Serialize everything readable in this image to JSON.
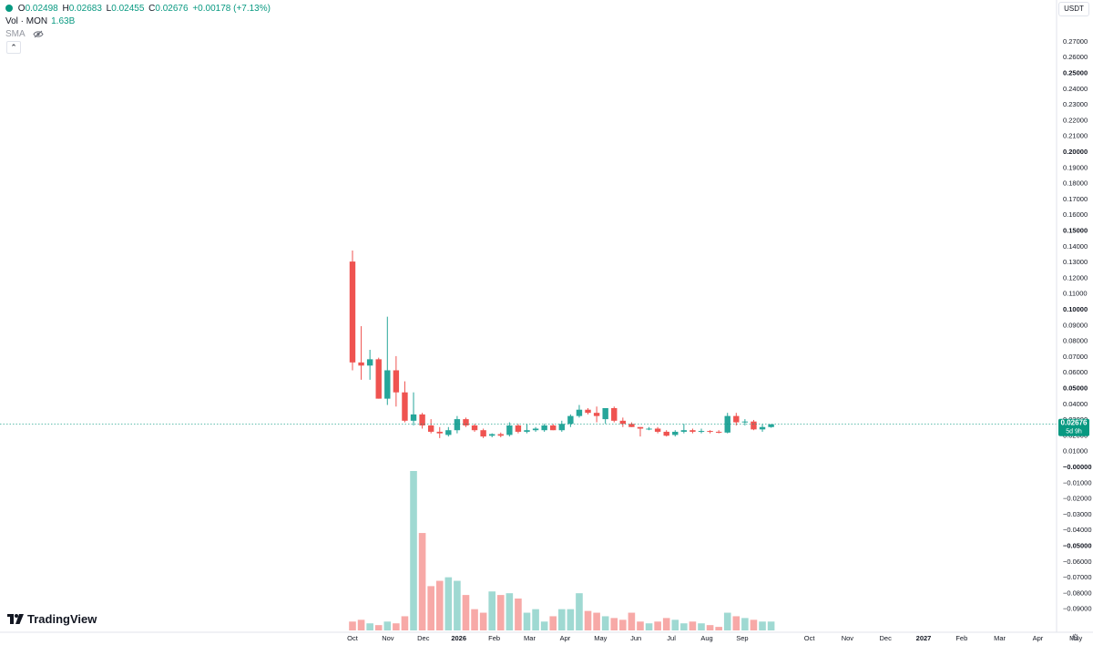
{
  "legend": {
    "o_key": "O",
    "o_val": "0.02498",
    "h_key": "H",
    "h_val": "0.02683",
    "l_key": "L",
    "l_val": "0.02455",
    "c_key": "C",
    "c_val": "0.02676",
    "change": "+0.00178 (+7.13%)",
    "vol_label": "Vol · MON",
    "vol_val": "1.63B",
    "sma_label": "SMA"
  },
  "currency": "USDT",
  "logo_text": "TradingView",
  "colors": {
    "up": "#26a69a",
    "down": "#ef5350",
    "up_vol": "#9fd9d2",
    "down_vol": "#f7a9a7",
    "price_tag": "#089981"
  },
  "chart_data": {
    "type": "candlestick",
    "interval": "weekly",
    "price_axis": {
      "ylim": [
        -0.1,
        0.28
      ],
      "tick_labels": [
        "0.27000",
        "0.26000",
        "0.25000",
        "0.24000",
        "0.23000",
        "0.22000",
        "0.21000",
        "0.20000",
        "0.19000",
        "0.18000",
        "0.17000",
        "0.16000",
        "0.15000",
        "0.14000",
        "0.13000",
        "0.12000",
        "0.11000",
        "0.10000",
        "0.09000",
        "0.08000",
        "0.07000",
        "0.06000",
        "0.05000",
        "0.04000",
        "0.03000",
        "0.02000",
        "0.01000",
        "−0.00000",
        "−0.01000",
        "−0.02000",
        "−0.03000",
        "−0.04000",
        "−0.05000",
        "−0.06000",
        "−0.07000",
        "−0.08000",
        "−0.09000"
      ],
      "bold_labels": [
        "0.25000",
        "0.20000",
        "0.15000",
        "0.10000",
        "0.05000",
        "−0.00000",
        "−0.05000"
      ]
    },
    "x_axis": {
      "labels": [
        "Oct",
        "Nov",
        "Dec",
        "2026",
        "Feb",
        "Mar",
        "Apr",
        "May",
        "Jun",
        "Jul",
        "Aug",
        "Sep",
        "Oct",
        "Nov",
        "Dec",
        "2027",
        "Feb",
        "Mar",
        "Apr",
        "May"
      ],
      "bold_labels": [
        "2026",
        "2027"
      ]
    },
    "last_price": {
      "value": 0.02676,
      "label": "0.02676",
      "countdown": "5d 9h"
    },
    "candles": [
      {
        "o": 0.13,
        "h": 0.137,
        "l": 0.061,
        "c": 0.066
      },
      {
        "o": 0.066,
        "h": 0.089,
        "l": 0.055,
        "c": 0.064
      },
      {
        "o": 0.064,
        "h": 0.074,
        "l": 0.055,
        "c": 0.068
      },
      {
        "o": 0.068,
        "h": 0.069,
        "l": 0.043,
        "c": 0.043
      },
      {
        "o": 0.043,
        "h": 0.095,
        "l": 0.039,
        "c": 0.061
      },
      {
        "o": 0.061,
        "h": 0.07,
        "l": 0.038,
        "c": 0.047
      },
      {
        "o": 0.047,
        "h": 0.054,
        "l": 0.028,
        "c": 0.029
      },
      {
        "o": 0.029,
        "h": 0.047,
        "l": 0.026,
        "c": 0.033
      },
      {
        "o": 0.033,
        "h": 0.034,
        "l": 0.024,
        "c": 0.026
      },
      {
        "o": 0.026,
        "h": 0.03,
        "l": 0.021,
        "c": 0.022
      },
      {
        "o": 0.022,
        "h": 0.025,
        "l": 0.018,
        "c": 0.021
      },
      {
        "o": 0.02,
        "h": 0.025,
        "l": 0.019,
        "c": 0.023
      },
      {
        "o": 0.023,
        "h": 0.032,
        "l": 0.021,
        "c": 0.03
      },
      {
        "o": 0.03,
        "h": 0.031,
        "l": 0.025,
        "c": 0.026
      },
      {
        "o": 0.026,
        "h": 0.027,
        "l": 0.022,
        "c": 0.023
      },
      {
        "o": 0.023,
        "h": 0.024,
        "l": 0.018,
        "c": 0.019
      },
      {
        "o": 0.0195,
        "h": 0.021,
        "l": 0.0185,
        "c": 0.0205
      },
      {
        "o": 0.0205,
        "h": 0.0215,
        "l": 0.0185,
        "c": 0.0195
      },
      {
        "o": 0.02,
        "h": 0.028,
        "l": 0.019,
        "c": 0.026
      },
      {
        "o": 0.026,
        "h": 0.027,
        "l": 0.021,
        "c": 0.022
      },
      {
        "o": 0.022,
        "h": 0.027,
        "l": 0.021,
        "c": 0.023
      },
      {
        "o": 0.023,
        "h": 0.025,
        "l": 0.022,
        "c": 0.024
      },
      {
        "o": 0.023,
        "h": 0.027,
        "l": 0.022,
        "c": 0.026
      },
      {
        "o": 0.026,
        "h": 0.027,
        "l": 0.023,
        "c": 0.023
      },
      {
        "o": 0.023,
        "h": 0.029,
        "l": 0.022,
        "c": 0.027
      },
      {
        "o": 0.027,
        "h": 0.033,
        "l": 0.025,
        "c": 0.032
      },
      {
        "o": 0.032,
        "h": 0.039,
        "l": 0.031,
        "c": 0.036
      },
      {
        "o": 0.036,
        "h": 0.037,
        "l": 0.033,
        "c": 0.034
      },
      {
        "o": 0.034,
        "h": 0.038,
        "l": 0.028,
        "c": 0.032
      },
      {
        "o": 0.03,
        "h": 0.036,
        "l": 0.027,
        "c": 0.037
      },
      {
        "o": 0.037,
        "h": 0.038,
        "l": 0.028,
        "c": 0.029
      },
      {
        "o": 0.029,
        "h": 0.031,
        "l": 0.025,
        "c": 0.027
      },
      {
        "o": 0.027,
        "h": 0.028,
        "l": 0.025,
        "c": 0.025
      },
      {
        "o": 0.025,
        "h": 0.025,
        "l": 0.019,
        "c": 0.024
      },
      {
        "o": 0.024,
        "h": 0.025,
        "l": 0.023,
        "c": 0.024
      },
      {
        "o": 0.024,
        "h": 0.025,
        "l": 0.021,
        "c": 0.022
      },
      {
        "o": 0.022,
        "h": 0.023,
        "l": 0.019,
        "c": 0.0195
      },
      {
        "o": 0.02,
        "h": 0.023,
        "l": 0.019,
        "c": 0.022
      },
      {
        "o": 0.022,
        "h": 0.027,
        "l": 0.021,
        "c": 0.023
      },
      {
        "o": 0.023,
        "h": 0.024,
        "l": 0.021,
        "c": 0.022
      },
      {
        "o": 0.022,
        "h": 0.024,
        "l": 0.021,
        "c": 0.0225
      },
      {
        "o": 0.0225,
        "h": 0.023,
        "l": 0.021,
        "c": 0.022
      },
      {
        "o": 0.022,
        "h": 0.023,
        "l": 0.021,
        "c": 0.0215
      },
      {
        "o": 0.0215,
        "h": 0.034,
        "l": 0.021,
        "c": 0.032
      },
      {
        "o": 0.032,
        "h": 0.034,
        "l": 0.026,
        "c": 0.028
      },
      {
        "o": 0.028,
        "h": 0.03,
        "l": 0.026,
        "c": 0.0285
      },
      {
        "o": 0.0285,
        "h": 0.0295,
        "l": 0.023,
        "c": 0.0235
      },
      {
        "o": 0.0235,
        "h": 0.027,
        "l": 0.022,
        "c": 0.025
      },
      {
        "o": 0.02498,
        "h": 0.02683,
        "l": 0.02455,
        "c": 0.02676
      }
    ],
    "volume": [
      0.05,
      0.06,
      0.04,
      0.03,
      0.05,
      0.04,
      0.08,
      0.9,
      0.55,
      0.25,
      0.28,
      0.3,
      0.28,
      0.2,
      0.12,
      0.1,
      0.22,
      0.2,
      0.21,
      0.18,
      0.1,
      0.12,
      0.05,
      0.08,
      0.12,
      0.12,
      0.21,
      0.11,
      0.1,
      0.08,
      0.07,
      0.06,
      0.1,
      0.05,
      0.04,
      0.05,
      0.07,
      0.06,
      0.04,
      0.05,
      0.04,
      0.03,
      0.02,
      0.1,
      0.08,
      0.07,
      0.06,
      0.05,
      0.05
    ]
  }
}
